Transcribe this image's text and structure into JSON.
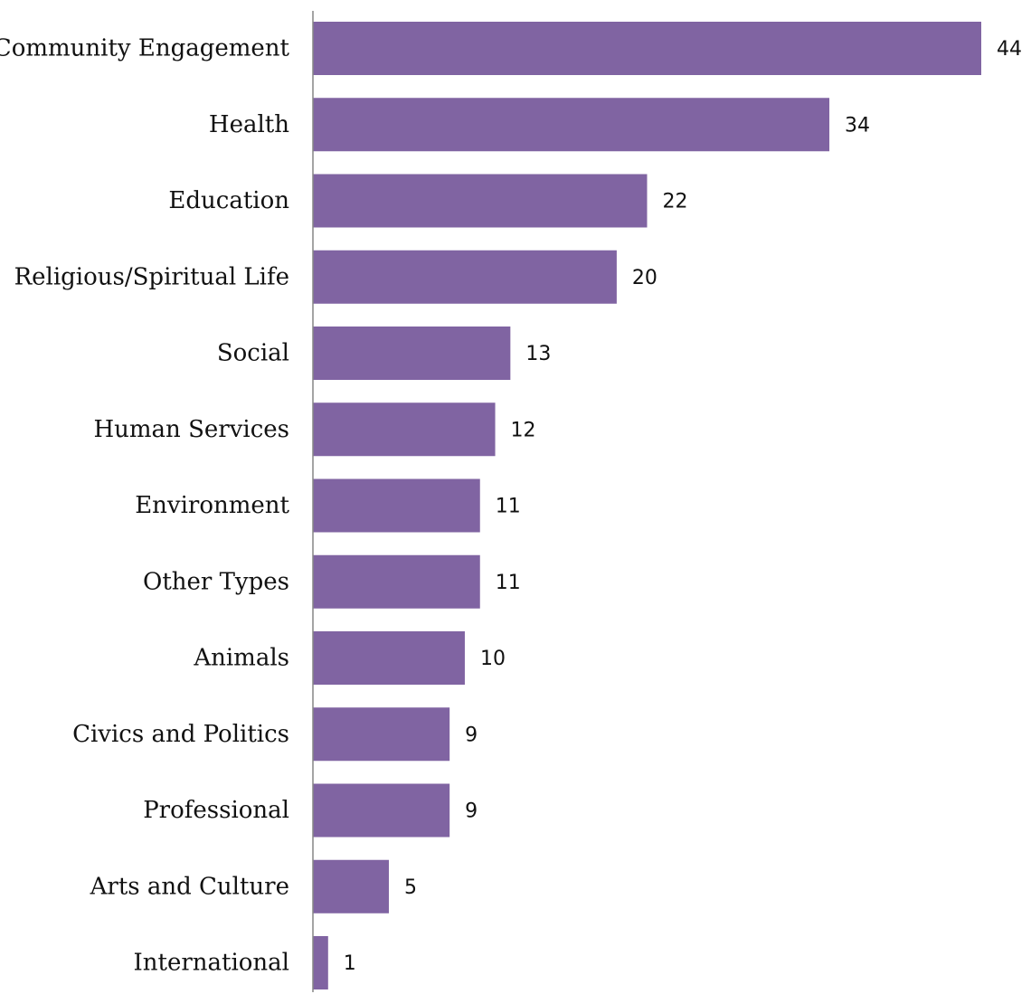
{
  "chart_data": {
    "type": "bar",
    "orientation": "horizontal",
    "categories": [
      "Community Engagement",
      "Health",
      "Education",
      "Religious/Spiritual Life",
      "Social",
      "Human Services",
      "Environment",
      "Other Types",
      "Animals",
      "Civics and Politics",
      "Professional",
      "Arts and Culture",
      "International"
    ],
    "values": [
      44,
      34,
      22,
      20,
      13,
      12,
      11,
      11,
      10,
      9,
      9,
      5,
      1
    ],
    "title": "",
    "xlabel": "",
    "ylabel": "",
    "xlim": [
      0,
      44
    ],
    "grid": false,
    "legend": "none",
    "data_labels": true,
    "colors": {
      "bar": "#8064a2",
      "axis": "#868686",
      "text": "#111111"
    }
  }
}
